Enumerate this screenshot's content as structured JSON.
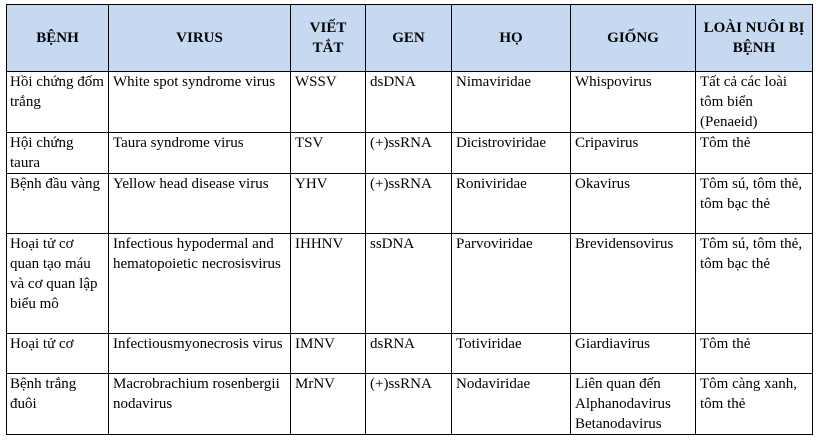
{
  "columns": [
    "BỆNH",
    "VIRUS",
    "VIẾT TẮT",
    "GEN",
    "HỌ",
    "GIỐNG",
    "LOÀI NUÔI BỊ BỆNH"
  ],
  "rows": [
    {
      "disease": "Hồi chứng đốm trắng",
      "virus": "White spot syndrome virus",
      "abbr": "WSSV",
      "genome": "dsDNA",
      "family": "Nimaviridae",
      "genus": "Whispovirus",
      "hosts": "Tất cả các loài tôm biển (Penaeid)"
    },
    {
      "disease": "Hội chứng taura",
      "virus": "Taura syndrome virus",
      "abbr": "TSV",
      "genome": "(+)ssRNA",
      "family": "Dicistroviridae",
      "genus": "Cripavirus",
      "hosts": "Tôm thẻ"
    },
    {
      "disease": "Bệnh đầu vàng",
      "virus": "Yellow head disease virus",
      "abbr": "YHV",
      "genome": "(+)ssRNA",
      "family": "Roniviridae",
      "genus": "Okavirus",
      "hosts": "Tôm sú, tôm thẻ, tôm bạc thẻ"
    },
    {
      "disease": "Hoại tử cơ quan tạo máu và cơ quan lập biểu mô",
      "virus": "Infectious hypodermal and hematopoietic necrosisvirus",
      "abbr": "IHHNV",
      "genome": "ssDNA",
      "family": "Parvoviridae",
      "genus": "Brevidensovirus",
      "hosts": "Tôm sú, tôm thẻ, tôm bạc thẻ"
    },
    {
      "disease": "Hoại tử cơ",
      "virus": "Infectiousmyonecrosis virus",
      "abbr": "IMNV",
      "genome": "dsRNA",
      "family": "Totiviridae",
      "genus": "Giardiavirus",
      "hosts": "Tôm thẻ"
    },
    {
      "disease": "Bệnh trắng đuôi",
      "virus": "Macrobrachium rosenbergii nodavirus",
      "abbr": "MrNV",
      "genome": "(+)ssRNA",
      "family": "Nodaviridae",
      "genus": "Liên quan đến Alphanodavirus Betanodavirus",
      "hosts": "Tôm càng xanh, tôm thẻ"
    }
  ]
}
